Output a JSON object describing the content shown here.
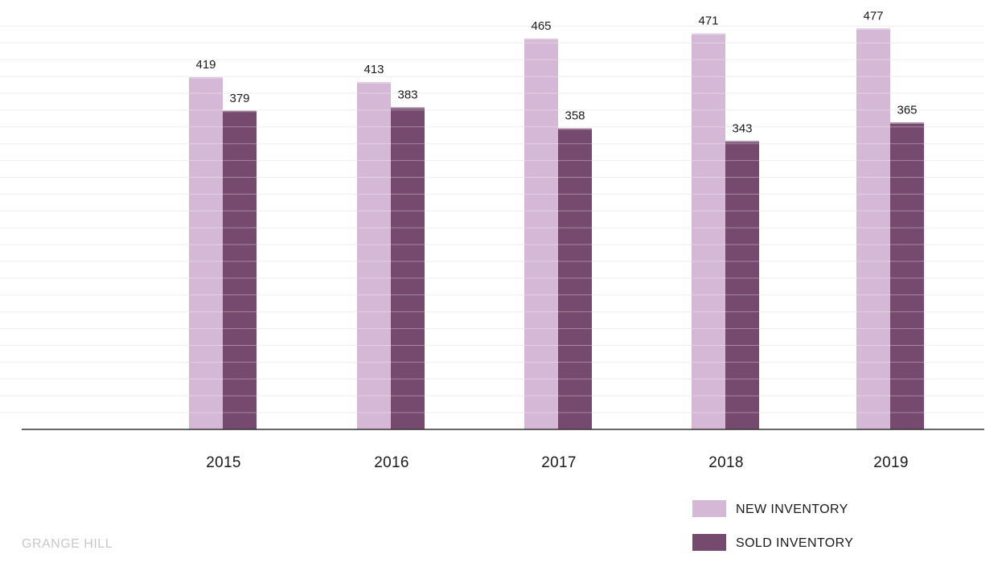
{
  "chart_data": {
    "type": "bar",
    "categories": [
      "2015",
      "2016",
      "2017",
      "2018",
      "2019"
    ],
    "series": [
      {
        "name": "NEW INVENTORY",
        "values": [
          419,
          413,
          465,
          471,
          477
        ],
        "color": "#d5b8d6"
      },
      {
        "name": "SOLD INVENTORY",
        "values": [
          379,
          383,
          358,
          343,
          365
        ],
        "color": "#754a6e"
      }
    ],
    "title": "",
    "xlabel": "",
    "ylabel": "",
    "ylim": [
      0,
      480
    ],
    "grid": true,
    "legend_position": "bottom-right"
  },
  "branding": {
    "text": "GRANGE HILL"
  },
  "colors": {
    "axis": "#333333",
    "grid": "#eeeeee",
    "brand_text": "#c8c8c8"
  }
}
